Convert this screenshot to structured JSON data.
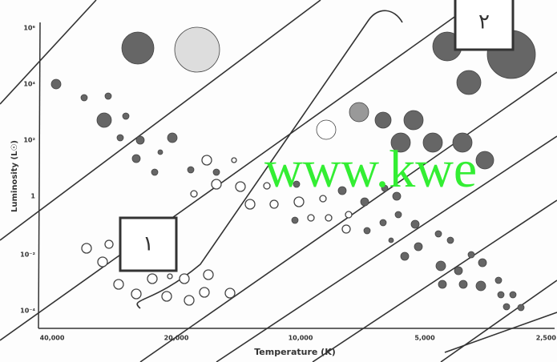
{
  "axes": {
    "y_label": "Luminosity (L☉)",
    "x_label": "Temperature (K)",
    "y_ticks": [
      "10⁶",
      "10⁴",
      "10²",
      "1",
      "10⁻²",
      "10⁻⁴"
    ],
    "x_ticks": [
      "40,000",
      "20,000",
      "10,000",
      "5,000",
      "2,500"
    ]
  },
  "boxes": [
    "۱",
    "۲"
  ],
  "watermark": "www.kwe"
}
